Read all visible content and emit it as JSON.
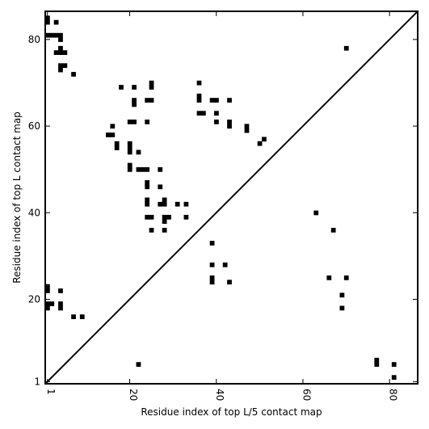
{
  "chart_data": {
    "type": "heatmap",
    "title": "",
    "xlabel": "Residue index of top L/5 contact map",
    "ylabel": "Residue index of top L contact map",
    "xlim": [
      0.5,
      86.5
    ],
    "ylim": [
      0.5,
      86.5
    ],
    "xticks": [
      {
        "value": 1,
        "label": "1"
      },
      {
        "value": 20,
        "label": "20"
      },
      {
        "value": 40,
        "label": "40"
      },
      {
        "value": 60,
        "label": "60"
      },
      {
        "value": 80,
        "label": "80"
      }
    ],
    "yticks": [
      {
        "value": 1,
        "label": "1"
      },
      {
        "value": 20,
        "label": "20"
      },
      {
        "value": 40,
        "label": "40"
      },
      {
        "value": 60,
        "label": "60"
      },
      {
        "value": 80,
        "label": "80"
      }
    ],
    "diagonal": true,
    "grid": false,
    "cell_color": "#000000",
    "upper_contacts": [
      [
        1,
        84
      ],
      [
        1,
        85
      ],
      [
        1,
        81
      ],
      [
        2,
        81
      ],
      [
        3,
        84
      ],
      [
        3,
        81
      ],
      [
        4,
        81
      ],
      [
        4,
        80
      ],
      [
        3,
        77
      ],
      [
        4,
        77
      ],
      [
        4,
        78
      ],
      [
        5,
        77
      ],
      [
        4,
        74
      ],
      [
        4,
        73
      ],
      [
        5,
        74
      ],
      [
        7,
        72
      ],
      [
        18,
        69
      ],
      [
        20,
        61
      ],
      [
        21,
        61
      ],
      [
        21,
        66
      ],
      [
        21,
        65
      ],
      [
        21,
        69
      ],
      [
        24,
        66
      ],
      [
        25,
        66
      ],
      [
        25,
        70
      ],
      [
        25,
        69
      ],
      [
        24,
        61
      ],
      [
        16,
        60
      ],
      [
        15,
        58
      ],
      [
        16,
        58
      ],
      [
        17,
        56
      ],
      [
        17,
        55
      ],
      [
        20,
        56
      ],
      [
        20,
        55
      ],
      [
        20,
        54
      ],
      [
        22,
        54
      ],
      [
        20,
        51
      ],
      [
        20,
        50
      ],
      [
        22,
        50
      ],
      [
        23,
        50
      ],
      [
        24,
        50
      ],
      [
        27,
        50
      ],
      [
        24,
        47
      ],
      [
        24,
        46
      ],
      [
        27,
        46
      ],
      [
        24,
        43
      ],
      [
        24,
        42
      ],
      [
        28,
        43
      ],
      [
        27,
        42
      ],
      [
        28,
        42
      ],
      [
        31,
        42
      ],
      [
        33,
        42
      ],
      [
        24,
        39
      ],
      [
        25,
        39
      ],
      [
        28,
        39
      ],
      [
        29,
        39
      ],
      [
        33,
        39
      ],
      [
        28,
        38
      ],
      [
        25,
        36
      ],
      [
        28,
        36
      ],
      [
        36,
        70
      ],
      [
        36,
        67
      ],
      [
        36,
        66
      ],
      [
        36,
        63
      ],
      [
        37,
        63
      ],
      [
        39,
        66
      ],
      [
        40,
        66
      ],
      [
        43,
        66
      ],
      [
        40,
        63
      ],
      [
        40,
        61
      ],
      [
        43,
        61
      ],
      [
        43,
        60
      ],
      [
        47,
        60
      ],
      [
        47,
        59
      ],
      [
        51,
        57
      ],
      [
        50,
        56
      ]
    ],
    "lower_contacts": [
      [
        70,
        78
      ],
      [
        63,
        40
      ],
      [
        67,
        36
      ],
      [
        39,
        33
      ],
      [
        39,
        28
      ],
      [
        42,
        28
      ],
      [
        39,
        25
      ],
      [
        39,
        24
      ],
      [
        43,
        24
      ],
      [
        66,
        25
      ],
      [
        70,
        25
      ],
      [
        69,
        21
      ],
      [
        69,
        18
      ],
      [
        1,
        23
      ],
      [
        1,
        22
      ],
      [
        4,
        22
      ],
      [
        1,
        19
      ],
      [
        2,
        19
      ],
      [
        1,
        18
      ],
      [
        4,
        19
      ],
      [
        4,
        18
      ],
      [
        7,
        16
      ],
      [
        9,
        16
      ],
      [
        22,
        5
      ],
      [
        77,
        6
      ],
      [
        77,
        5
      ],
      [
        81,
        5
      ],
      [
        81,
        2
      ]
    ]
  }
}
